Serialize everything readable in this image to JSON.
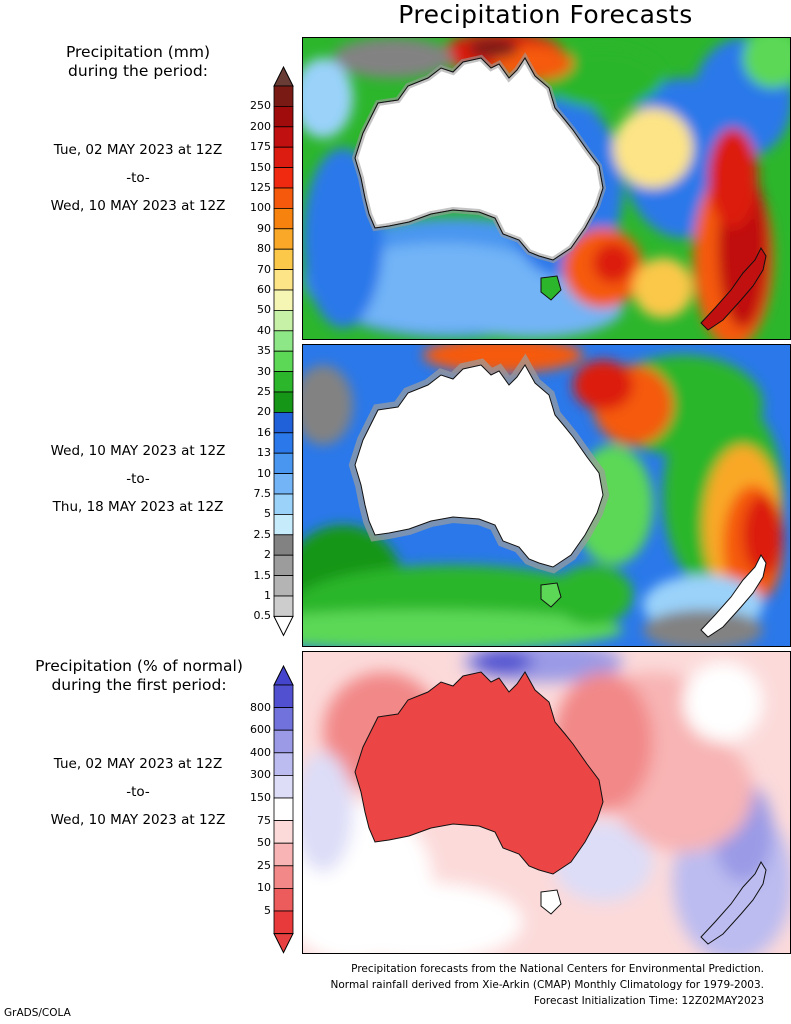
{
  "title": "Precipitation Forecasts",
  "period1": {
    "heading_line1": "Precipitation (mm)",
    "heading_line2": "during the period:",
    "start": "Tue, 02 MAY 2023 at 12Z",
    "sep": "-to-",
    "end": "Wed, 10 MAY 2023 at 12Z"
  },
  "period2": {
    "start": "Wed, 10 MAY 2023 at 12Z",
    "sep": "-to-",
    "end": "Thu, 18 MAY 2023 at 12Z"
  },
  "period3": {
    "heading_line1": "Precipitation (% of normal)",
    "heading_line2": "during the first period:",
    "start": "Tue, 02 MAY 2023 at 12Z",
    "sep": "-to-",
    "end": "Wed, 10 MAY 2023 at 12Z"
  },
  "mm_scale": {
    "labels": [
      "250",
      "200",
      "175",
      "150",
      "125",
      "100",
      "90",
      "80",
      "70",
      "60",
      "50",
      "40",
      "35",
      "30",
      "25",
      "20",
      "16",
      "13",
      "10",
      "7.5",
      "5",
      "2.5",
      "2",
      "1.5",
      "1",
      "0.5"
    ],
    "colors": [
      "#7a1a14",
      "#a00c0c",
      "#c01010",
      "#dc1c10",
      "#f02a10",
      "#f55a0c",
      "#f7820e",
      "#f9a828",
      "#fbc84a",
      "#fde486",
      "#f6f6b4",
      "#c6f1a6",
      "#8ee786",
      "#5cd856",
      "#2cb62c",
      "#169616",
      "#2060d8",
      "#2a78ea",
      "#4896f0",
      "#72b4f6",
      "#9ad2fa",
      "#c6ecfc",
      "#828282",
      "#9c9c9c",
      "#b4b4b4",
      "#cdcdcd"
    ],
    "top_arrow_color": "#6a3c36",
    "bottom_arrow_color": "#ffffff"
  },
  "pct_scale": {
    "labels": [
      "800",
      "600",
      "400",
      "300",
      "150",
      "75",
      "50",
      "25",
      "10",
      "5"
    ],
    "colors": [
      "#5050d0",
      "#7272dc",
      "#9a9ae6",
      "#bcbcf0",
      "#ddddf8",
      "#ffffff",
      "#fcdada",
      "#f8b4b4",
      "#f28888",
      "#ec5c5c",
      "#e83a3a"
    ],
    "top_arrow_color": "#4444cc",
    "bottom_arrow_color": "#e84040"
  },
  "footer": {
    "line1": "Precipitation forecasts from the National Centers for Environmental Prediction.",
    "line2": "Normal rainfall derived from Xie-Arkin (CMAP) Monthly Climatology for 1979-2003.",
    "line3": "Forecast Initialization Time: 12Z02MAY2023"
  },
  "credit": "GrADS/COLA"
}
